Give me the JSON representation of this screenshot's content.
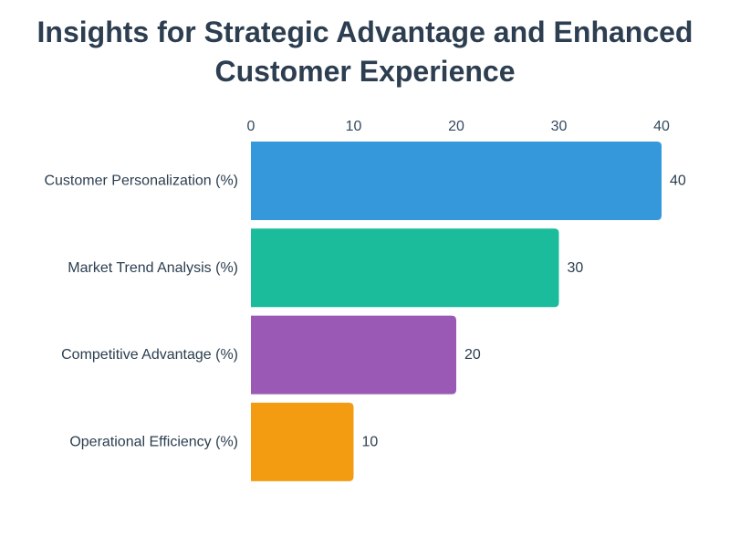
{
  "chart_data": {
    "type": "bar",
    "orientation": "horizontal",
    "title": "Insights for Strategic Advantage and Enhanced Customer Experience",
    "xlabel": "",
    "ylabel": "",
    "categories": [
      "Customer Personalization (%)",
      "Market Trend Analysis (%)",
      "Competitive Advantage (%)",
      "Operational Efficiency (%)"
    ],
    "values": [
      40,
      30,
      20,
      10
    ],
    "data_labels": [
      "40",
      "30",
      "20",
      "10"
    ],
    "colors": [
      "#3498db",
      "#1abc9c",
      "#9b59b6",
      "#f39c12"
    ],
    "x_ticks": [
      0,
      10,
      20,
      30,
      40
    ],
    "x_tick_labels": [
      "0",
      "10",
      "20",
      "30",
      "40"
    ],
    "xlim": [
      0,
      40
    ],
    "x_axis_position": "top",
    "grid": false,
    "legend": "none"
  }
}
